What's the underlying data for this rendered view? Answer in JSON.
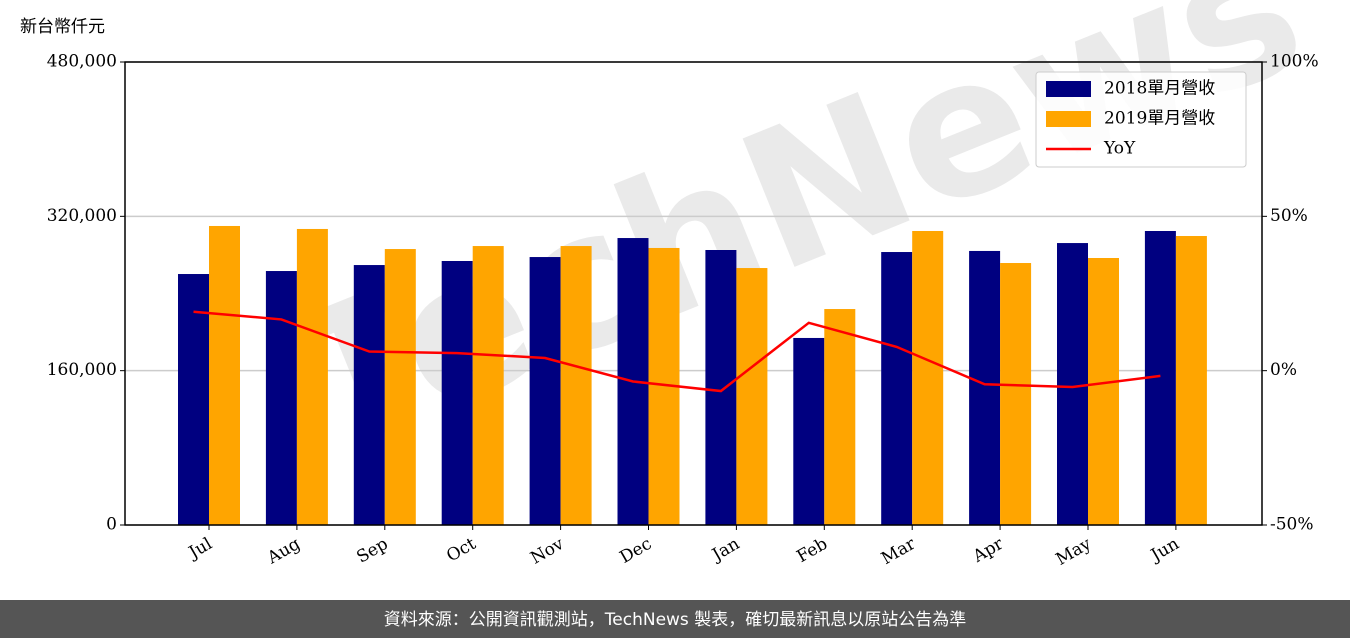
{
  "chart_data": {
    "type": "bar",
    "y_axis_label": "新台幣仟元",
    "categories": [
      "Jul",
      "Aug",
      "Sep",
      "Oct",
      "Nov",
      "Dec",
      "Jan",
      "Feb",
      "Mar",
      "Apr",
      "May",
      "Jun"
    ],
    "series": [
      {
        "name": "2018單月營收",
        "color": "#000080",
        "values": [
          260200,
          263300,
          269500,
          273700,
          277800,
          297500,
          285100,
          193900,
          283000,
          284100,
          292300,
          304800
        ]
      },
      {
        "name": "2019單月營收",
        "color": "#ffa500",
        "values": [
          310000,
          306900,
          286100,
          289200,
          289200,
          287200,
          266400,
          223900,
          304800,
          271600,
          276800,
          299600
        ]
      },
      {
        "name": "YoY",
        "color": "#ff0000",
        "type": "line",
        "axis": "y2",
        "values": [
          19.1,
          16.6,
          6.2,
          5.7,
          4.1,
          -3.5,
          -6.6,
          15.5,
          7.7,
          -4.4,
          -5.3,
          -1.7
        ]
      }
    ],
    "ylim": [
      0,
      480000
    ],
    "yticks": [
      0,
      {
        "value": 160000,
        "label": "160,000"
      },
      {
        "value": 320000,
        "label": "320,000"
      },
      {
        "value": 480000,
        "label": "480,000"
      }
    ],
    "y2lim": [
      -50,
      100
    ],
    "y2ticks": [
      {
        "value": -50,
        "label": "-50%"
      },
      {
        "value": 0,
        "label": "0%"
      },
      {
        "value": 50,
        "label": "50%"
      },
      {
        "value": 100,
        "label": "100%"
      }
    ],
    "grid": true,
    "legend": "upper right",
    "watermark": "TechNews",
    "footer": "資料來源：公開資訊觀測站，TechNews 製表，確切最新訊息以原站公告為準"
  }
}
